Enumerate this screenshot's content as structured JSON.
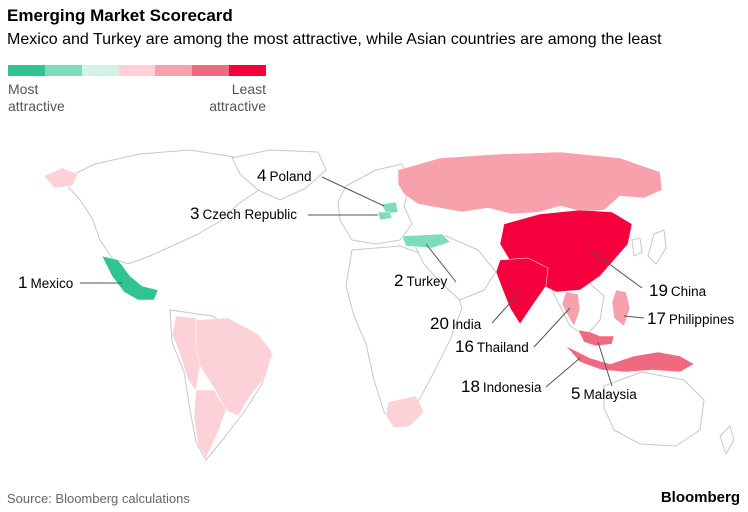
{
  "header": {
    "title": "Emerging Market Scorecard",
    "subtitle": "Mexico and Turkey are among the most attractive, while Asian countries are among the least"
  },
  "legend": {
    "colors": [
      "#2fc491",
      "#7fdcb8",
      "#d4f1e6",
      "#fcd1d8",
      "#f7a1ac",
      "#ef6a80",
      "#f5003c"
    ],
    "left_label_line1": "Most",
    "left_label_line2": "attractive",
    "right_label_line1": "Least",
    "right_label_line2": "attractive"
  },
  "countries": [
    {
      "key": "mexico",
      "rank": "1",
      "name": "Mexico"
    },
    {
      "key": "turkey",
      "rank": "2",
      "name": "Turkey"
    },
    {
      "key": "czech",
      "rank": "3",
      "name": "Czech Republic"
    },
    {
      "key": "poland",
      "rank": "4",
      "name": "Poland"
    },
    {
      "key": "malaysia",
      "rank": "5",
      "name": "Malaysia"
    },
    {
      "key": "thailand",
      "rank": "16",
      "name": "Thailand"
    },
    {
      "key": "philippines",
      "rank": "17",
      "name": "Philippines"
    },
    {
      "key": "indonesia",
      "rank": "18",
      "name": "Indonesia"
    },
    {
      "key": "china",
      "rank": "19",
      "name": "China"
    },
    {
      "key": "india",
      "rank": "20",
      "name": "India"
    }
  ],
  "footer": {
    "source": "Source: Bloomberg calculations",
    "brand": "Bloomberg"
  }
}
